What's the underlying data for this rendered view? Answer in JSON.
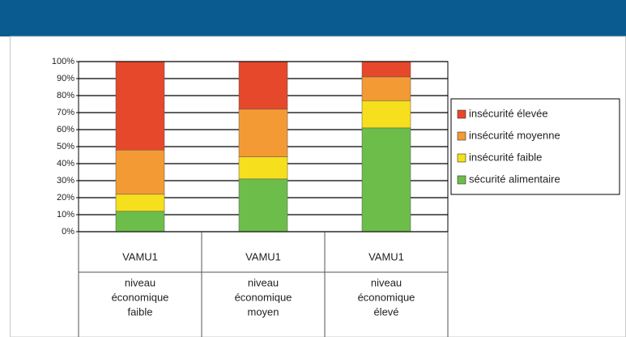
{
  "chart_data": {
    "type": "stacked_bar",
    "categories": [
      [
        "VAMU1",
        "niveau",
        "économique",
        "faible"
      ],
      [
        "VAMU1",
        "niveau",
        "économique",
        "moyen"
      ],
      [
        "VAMU1",
        "niveau",
        "économique",
        "élevé"
      ]
    ],
    "series": [
      {
        "name": "sécurité alimentaire",
        "color": "#6dbd4b",
        "values": [
          12,
          31,
          61
        ]
      },
      {
        "name": "insécurité faible",
        "color": "#f6df1d",
        "values": [
          10,
          13,
          16
        ]
      },
      {
        "name": "insécurité moyenne",
        "color": "#f49a35",
        "values": [
          26,
          28,
          14
        ]
      },
      {
        "name": "insécurité élevée",
        "color": "#e6482b",
        "values": [
          52,
          28,
          9
        ]
      }
    ],
    "ylim": [
      0,
      100
    ],
    "yticks": [
      {
        "value": 0,
        "label": "0%"
      },
      {
        "value": 10,
        "label": "10%"
      },
      {
        "value": 20,
        "label": "20%"
      },
      {
        "value": 30,
        "label": "30%"
      },
      {
        "value": 40,
        "label": "40%"
      },
      {
        "value": 50,
        "label": "50%"
      },
      {
        "value": 60,
        "label": "60%"
      },
      {
        "value": 70,
        "label": "70%"
      },
      {
        "value": 80,
        "label": "80%"
      },
      {
        "value": 90,
        "label": "90%"
      },
      {
        "value": 100,
        "label": "100%"
      }
    ],
    "grid": true,
    "legend": "right"
  }
}
